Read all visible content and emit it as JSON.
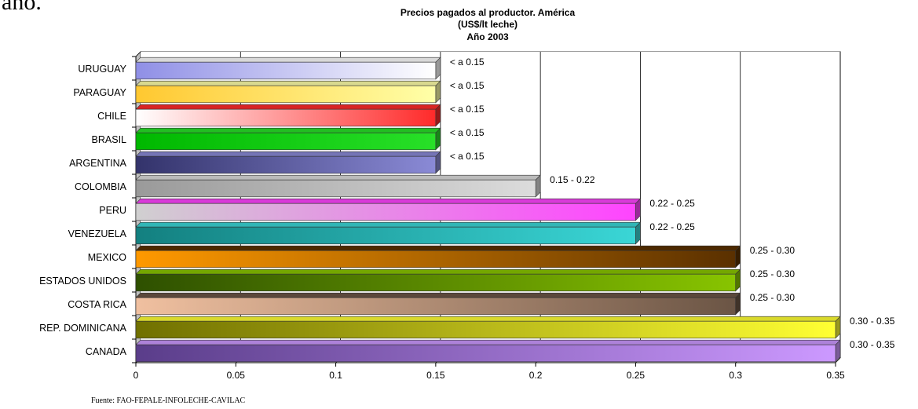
{
  "fragment_text": "año.",
  "source_note": "Fuente: FAO-FEPALE-INFOLECHE-CAVILAC",
  "chart_data": {
    "type": "bar",
    "orientation": "horizontal",
    "title": [
      "Precios pagados al productor. América",
      "(US$/lt leche)",
      "Año 2003"
    ],
    "xlim": [
      0,
      0.35
    ],
    "xticks": [
      0,
      0.05,
      0.1,
      0.15,
      0.2,
      0.25,
      0.3,
      0.35
    ],
    "xtick_labels": [
      "0",
      "0.05",
      "0.1",
      "0.15",
      "0.2",
      "0.25",
      "0.3",
      "0.35"
    ],
    "grid": "vertical lines at major ticks",
    "categories": [
      "URUGUAY",
      "PARAGUAY",
      "CHILE",
      "BRASIL",
      "ARGENTINA",
      "COLOMBIA",
      "PERU",
      "VENEZUELA",
      "MEXICO",
      "ESTADOS UNIDOS",
      "COSTA RICA",
      "REP. DOMINICANA",
      "CANADA"
    ],
    "values": [
      0.15,
      0.15,
      0.15,
      0.15,
      0.15,
      0.2,
      0.25,
      0.25,
      0.3,
      0.3,
      0.3,
      0.35,
      0.35
    ],
    "data_labels": [
      "< a 0.15",
      "< a 0.15",
      "< a 0.15",
      "< a 0.15",
      "< a 0.15",
      "0.15 - 0.22",
      "0.22 - 0.25",
      "0.22 - 0.25",
      "0.25 - 0.30",
      "0.25 - 0.30",
      "0.25 - 0.30",
      "0.30 - 0.35",
      "0.30 - 0.35"
    ],
    "bar_colors": [
      [
        "#8f8fe6",
        "#ffffff"
      ],
      [
        "#ffc830",
        "#ffffa8"
      ],
      [
        "#ffffff",
        "#ff2a2a"
      ],
      [
        "#00b800",
        "#28e028"
      ],
      [
        "#33336b",
        "#8a8ad6"
      ],
      [
        "#9a9a9a",
        "#dcdcdc"
      ],
      [
        "#d0d0d0",
        "#ff44ff"
      ],
      [
        "#138080",
        "#3ad6d6"
      ],
      [
        "#ff9900",
        "#5a3000"
      ],
      [
        "#2e5000",
        "#88c400"
      ],
      [
        "#f0c0a0",
        "#6b5545"
      ],
      [
        "#707000",
        "#ffff33"
      ],
      [
        "#5a3d8a",
        "#cc99ff"
      ]
    ]
  }
}
